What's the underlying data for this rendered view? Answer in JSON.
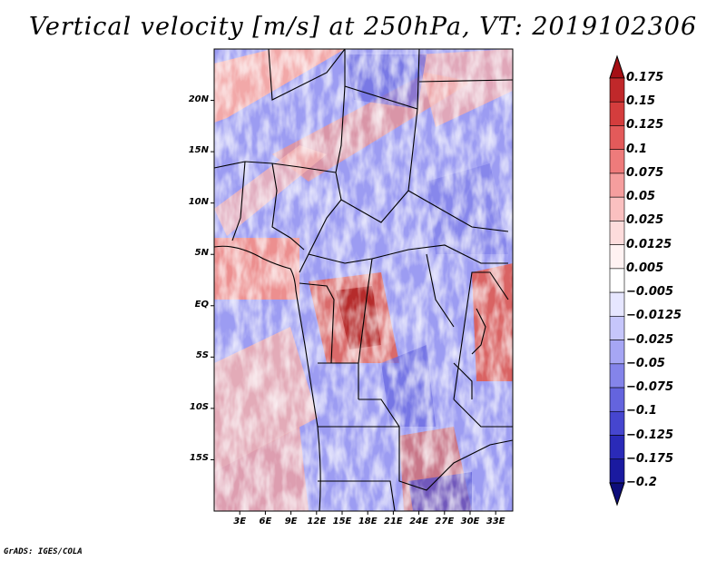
{
  "title": "Vertical velocity [m/s] at 250hPa, VT: 2019102306",
  "credit": "GrADS: IGES/COLA",
  "map": {
    "region": "Central Africa",
    "lon_range": [
      0,
      35
    ],
    "lat_range": [
      -20,
      25
    ],
    "lat_ticks": [
      {
        "value": 20,
        "label": "20N"
      },
      {
        "value": 15,
        "label": "15N"
      },
      {
        "value": 10,
        "label": "10N"
      },
      {
        "value": 5,
        "label": "5N"
      },
      {
        "value": 0,
        "label": "EQ"
      },
      {
        "value": -5,
        "label": "5S"
      },
      {
        "value": -10,
        "label": "10S"
      },
      {
        "value": -15,
        "label": "15S"
      }
    ],
    "lon_ticks": [
      {
        "value": 3,
        "label": "3E"
      },
      {
        "value": 6,
        "label": "6E"
      },
      {
        "value": 9,
        "label": "9E"
      },
      {
        "value": 12,
        "label": "12E"
      },
      {
        "value": 15,
        "label": "15E"
      },
      {
        "value": 18,
        "label": "18E"
      },
      {
        "value": 21,
        "label": "21E"
      },
      {
        "value": 24,
        "label": "24E"
      },
      {
        "value": 27,
        "label": "27E"
      },
      {
        "value": 30,
        "label": "30E"
      },
      {
        "value": 33,
        "label": "33E"
      }
    ]
  },
  "colorbar": {
    "levels": [
      "0.175",
      "0.15",
      "0.125",
      "0.1",
      "0.075",
      "0.05",
      "0.025",
      "0.0125",
      "0.005",
      "−0.005",
      "−0.0125",
      "−0.025",
      "−0.05",
      "−0.075",
      "−0.1",
      "−0.125",
      "−0.175",
      "−0.2"
    ],
    "colors": [
      "#a50f15",
      "#c0282a",
      "#d43d3d",
      "#e35a5a",
      "#ee7b7b",
      "#f59e9e",
      "#fac0c0",
      "#fddcdc",
      "#fff2f2",
      "#ffffff",
      "#e6e6ff",
      "#c6c6fb",
      "#a6a6f4",
      "#8484ea",
      "#6464de",
      "#4646cf",
      "#2a2ab8",
      "#1a1aa0",
      "#0d0d7a"
    ]
  }
}
